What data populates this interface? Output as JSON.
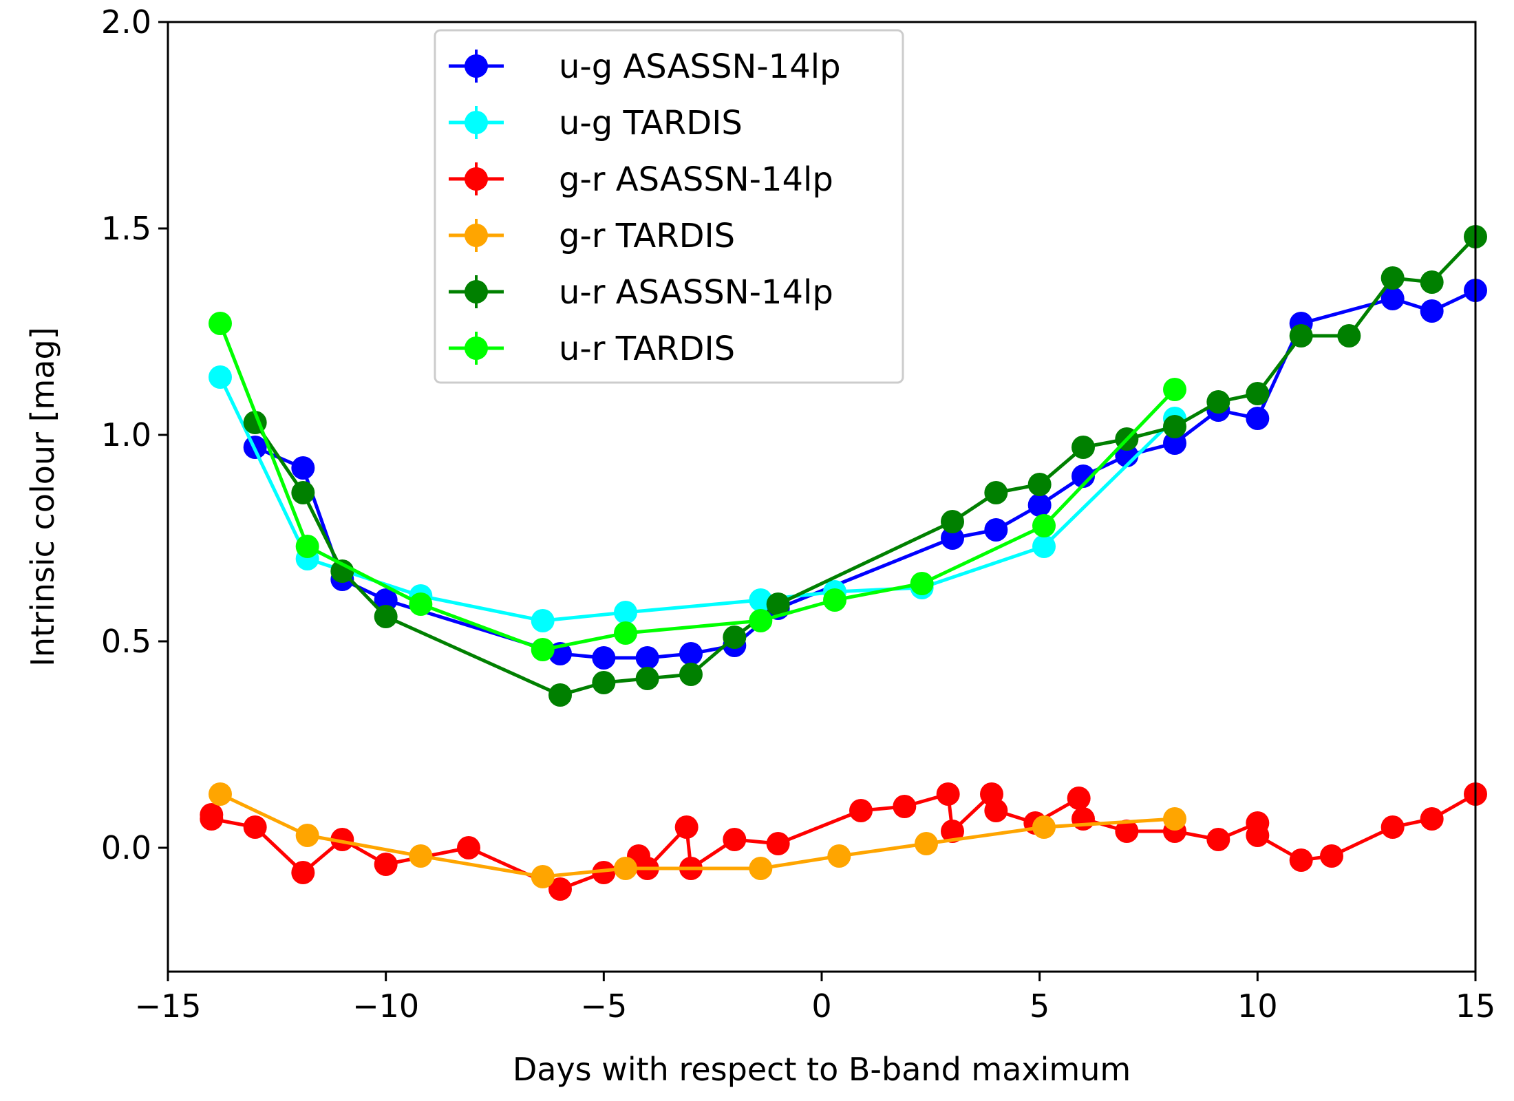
{
  "chart_data": {
    "type": "line",
    "title": "",
    "xlabel": "Days with respect to B-band maximum",
    "ylabel": "Intrinsic colour [mag]",
    "xlim": [
      -15,
      15
    ],
    "ylim": [
      -0.3,
      2.0
    ],
    "xticks": [
      -15,
      -10,
      -5,
      0,
      5,
      10,
      15
    ],
    "xtick_labels": [
      "−15",
      "−10",
      "−5",
      "0",
      "5",
      "10",
      "15"
    ],
    "yticks": [
      0.0,
      0.5,
      1.0,
      1.5,
      2.0
    ],
    "ytick_labels": [
      "0.0",
      "0.5",
      "1.0",
      "1.5",
      "2.0"
    ],
    "grid": false,
    "legend_position": "top-center",
    "series": [
      {
        "name": "u-g ASASSN-14lp",
        "color": "#0000ff",
        "x": [
          -13.0,
          -11.9,
          -11.0,
          -10.0,
          -6.0,
          -5.0,
          -4.0,
          -3.0,
          -2.0,
          -1.0,
          3.0,
          4.0,
          5.0,
          6.0,
          7.0,
          8.1,
          9.1,
          10.0,
          11.0,
          13.1,
          14.0,
          15.0
        ],
        "y": [
          0.97,
          0.92,
          0.65,
          0.6,
          0.47,
          0.46,
          0.46,
          0.47,
          0.49,
          0.58,
          0.75,
          0.77,
          0.83,
          0.9,
          0.95,
          0.98,
          1.06,
          1.04,
          1.27,
          1.33,
          1.3,
          1.35
        ]
      },
      {
        "name": "u-g TARDIS",
        "color": "#00ffff",
        "x": [
          -13.8,
          -11.8,
          -9.2,
          -6.4,
          -4.5,
          -1.4,
          0.3,
          2.3,
          5.1,
          8.1
        ],
        "y": [
          1.14,
          0.7,
          0.61,
          0.55,
          0.57,
          0.6,
          0.62,
          0.63,
          0.73,
          1.04
        ]
      },
      {
        "name": "g-r ASASSN-14lp",
        "color": "#ff0000",
        "x": [
          -14.0,
          -14.0,
          -13.0,
          -11.9,
          -11.0,
          -10.0,
          -8.1,
          -6.0,
          -5.0,
          -4.2,
          -4.0,
          -3.1,
          -3.0,
          -2.0,
          -1.0,
          0.9,
          1.9,
          2.9,
          3.0,
          3.9,
          4.0,
          4.9,
          5.9,
          6.0,
          7.0,
          8.1,
          9.1,
          10.0,
          10.0,
          11.0,
          11.7,
          13.1,
          14.0,
          15.0
        ],
        "y": [
          0.08,
          0.07,
          0.05,
          -0.06,
          0.02,
          -0.04,
          0.0,
          -0.1,
          -0.06,
          -0.02,
          -0.05,
          0.05,
          -0.05,
          0.02,
          0.01,
          0.09,
          0.1,
          0.13,
          0.04,
          0.13,
          0.09,
          0.06,
          0.12,
          0.07,
          0.04,
          0.04,
          0.02,
          0.06,
          0.03,
          -0.03,
          -0.02,
          0.05,
          0.07,
          0.13
        ]
      },
      {
        "name": "g-r TARDIS",
        "color": "#ffa500",
        "x": [
          -13.8,
          -11.8,
          -9.2,
          -6.4,
          -4.5,
          -1.4,
          0.4,
          2.4,
          5.1,
          8.1
        ],
        "y": [
          0.13,
          0.03,
          -0.02,
          -0.07,
          -0.05,
          -0.05,
          -0.02,
          0.01,
          0.05,
          0.07
        ]
      },
      {
        "name": "u-r ASASSN-14lp",
        "color": "#008000",
        "x": [
          -13.0,
          -11.9,
          -11.0,
          -10.0,
          -6.0,
          -5.0,
          -4.0,
          -3.0,
          -2.0,
          -1.0,
          3.0,
          4.0,
          5.0,
          6.0,
          7.0,
          8.1,
          9.1,
          10.0,
          11.0,
          12.1,
          13.1,
          14.0,
          15.0
        ],
        "y": [
          1.03,
          0.86,
          0.67,
          0.56,
          0.37,
          0.4,
          0.41,
          0.42,
          0.51,
          0.59,
          0.79,
          0.86,
          0.88,
          0.97,
          0.99,
          1.02,
          1.08,
          1.1,
          1.24,
          1.24,
          1.38,
          1.37,
          1.48
        ]
      },
      {
        "name": "u-r TARDIS",
        "color": "#00ff00",
        "x": [
          -13.8,
          -11.8,
          -9.2,
          -6.4,
          -4.5,
          -1.4,
          0.3,
          2.3,
          5.1,
          8.1
        ],
        "y": [
          1.27,
          0.73,
          0.59,
          0.48,
          0.52,
          0.55,
          0.6,
          0.64,
          0.78,
          1.11
        ]
      }
    ]
  }
}
